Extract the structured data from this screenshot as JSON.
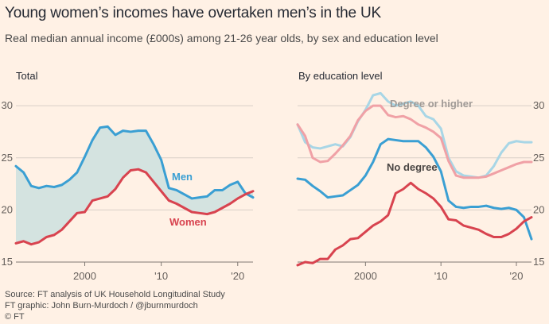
{
  "header": {
    "title": "Young women’s incomes have overtaken men’s in the UK",
    "subtitle": "Real median annual income (£000s) among 21-26 year olds, by sex and education level"
  },
  "footer": {
    "source": "Source: FT analysis of UK Household Longitudinal Study",
    "graphic": "FT graphic: John Burn-Murdoch / @jburnmurdoch",
    "copyright": "© FT"
  },
  "colors": {
    "men": "#3a9fd3",
    "women": "#d8434f",
    "men_light": "#a8d6e6",
    "women_light": "#f0a1a6",
    "gap_fill": "#d4e3e0",
    "background": "#fff1e5"
  },
  "chart_data": [
    {
      "type": "line",
      "title": "Total",
      "xlabel": "",
      "ylabel": "",
      "x_ticks": [
        "2000",
        "'10",
        "'20"
      ],
      "y_ticks": [
        "15",
        "20",
        "25",
        "30"
      ],
      "xlim": [
        1991,
        2022
      ],
      "ylim": [
        15,
        31
      ],
      "grid": true,
      "shaded_gap_between": [
        "Men",
        "Women"
      ],
      "x": [
        1991,
        1992,
        1993,
        1994,
        1995,
        1996,
        1997,
        1998,
        1999,
        2000,
        2001,
        2002,
        2003,
        2004,
        2005,
        2006,
        2007,
        2008,
        2009,
        2010,
        2011,
        2012,
        2013,
        2014,
        2015,
        2016,
        2017,
        2018,
        2019,
        2020,
        2021,
        2022
      ],
      "series": [
        {
          "name": "Men",
          "color": "#3a9fd3",
          "values": [
            24.2,
            23.6,
            22.3,
            22.1,
            22.3,
            22.2,
            22.4,
            22.9,
            23.6,
            25.1,
            26.7,
            27.9,
            28.0,
            27.2,
            27.6,
            27.5,
            27.6,
            27.6,
            26.3,
            24.8,
            22.1,
            21.9,
            21.5,
            21.1,
            21.2,
            21.3,
            21.9,
            21.9,
            22.4,
            22.7,
            21.6,
            21.2
          ]
        },
        {
          "name": "Women",
          "color": "#d8434f",
          "values": [
            16.8,
            17.0,
            16.7,
            16.9,
            17.4,
            17.6,
            18.1,
            18.9,
            19.7,
            19.8,
            20.9,
            21.1,
            21.3,
            22.0,
            23.1,
            23.8,
            23.9,
            23.6,
            22.7,
            21.8,
            20.9,
            20.6,
            20.2,
            19.8,
            19.7,
            19.6,
            19.8,
            20.2,
            20.6,
            21.1,
            21.5,
            21.8
          ]
        }
      ]
    },
    {
      "type": "line",
      "title": "By education level",
      "xlabel": "",
      "ylabel": "",
      "x_ticks": [
        "2000",
        "'10",
        "'20"
      ],
      "y_ticks": [
        "15",
        "20",
        "25",
        "30"
      ],
      "xlim": [
        1991,
        2022
      ],
      "ylim": [
        15,
        31
      ],
      "grid": true,
      "annotations": [
        "Degree or higher",
        "No degree"
      ],
      "x": [
        1991,
        1992,
        1993,
        1994,
        1995,
        1996,
        1997,
        1998,
        1999,
        2000,
        2001,
        2002,
        2003,
        2004,
        2005,
        2006,
        2007,
        2008,
        2009,
        2010,
        2011,
        2012,
        2013,
        2014,
        2015,
        2016,
        2017,
        2018,
        2019,
        2020,
        2021,
        2022
      ],
      "series": [
        {
          "name": "Men",
          "group": "Degree or higher",
          "color": "#a8d6e6",
          "values": [
            28.2,
            26.5,
            26.0,
            25.9,
            26.1,
            26.3,
            26.1,
            27.0,
            28.5,
            29.6,
            31.0,
            31.2,
            30.4,
            30.0,
            30.2,
            30.4,
            30.0,
            29.0,
            28.7,
            27.8,
            25.0,
            23.7,
            23.3,
            23.2,
            23.1,
            23.3,
            24.2,
            25.5,
            26.4,
            26.6,
            26.5,
            26.5
          ]
        },
        {
          "name": "Women",
          "group": "Degree or higher",
          "color": "#f0a1a6",
          "values": [
            28.2,
            27.1,
            25.0,
            24.6,
            24.7,
            25.4,
            26.2,
            27.1,
            28.6,
            29.5,
            30.0,
            30.0,
            29.1,
            28.9,
            29.0,
            28.7,
            28.2,
            27.9,
            27.5,
            26.9,
            24.7,
            23.3,
            23.1,
            23.1,
            23.1,
            23.2,
            23.5,
            23.8,
            24.1,
            24.4,
            24.6,
            24.6
          ]
        },
        {
          "name": "Men",
          "group": "No degree",
          "color": "#3a9fd3",
          "values": [
            23.0,
            22.9,
            22.3,
            21.8,
            21.2,
            21.3,
            21.4,
            21.9,
            22.4,
            23.3,
            24.6,
            26.3,
            26.8,
            26.7,
            26.6,
            26.6,
            26.6,
            26.0,
            25.1,
            23.7,
            20.9,
            20.3,
            20.2,
            20.3,
            20.3,
            20.4,
            20.2,
            20.1,
            20.2,
            20.0,
            19.3,
            17.2
          ]
        },
        {
          "name": "Women",
          "group": "No degree",
          "color": "#d8434f",
          "values": [
            14.7,
            15.0,
            14.9,
            15.3,
            15.3,
            16.2,
            16.6,
            17.2,
            17.3,
            17.9,
            18.5,
            18.9,
            19.5,
            21.6,
            22.0,
            22.6,
            22.0,
            21.6,
            21.1,
            20.3,
            19.1,
            19.0,
            18.5,
            18.3,
            18.1,
            17.7,
            17.4,
            17.4,
            17.7,
            18.2,
            18.9,
            19.3
          ]
        }
      ]
    }
  ]
}
